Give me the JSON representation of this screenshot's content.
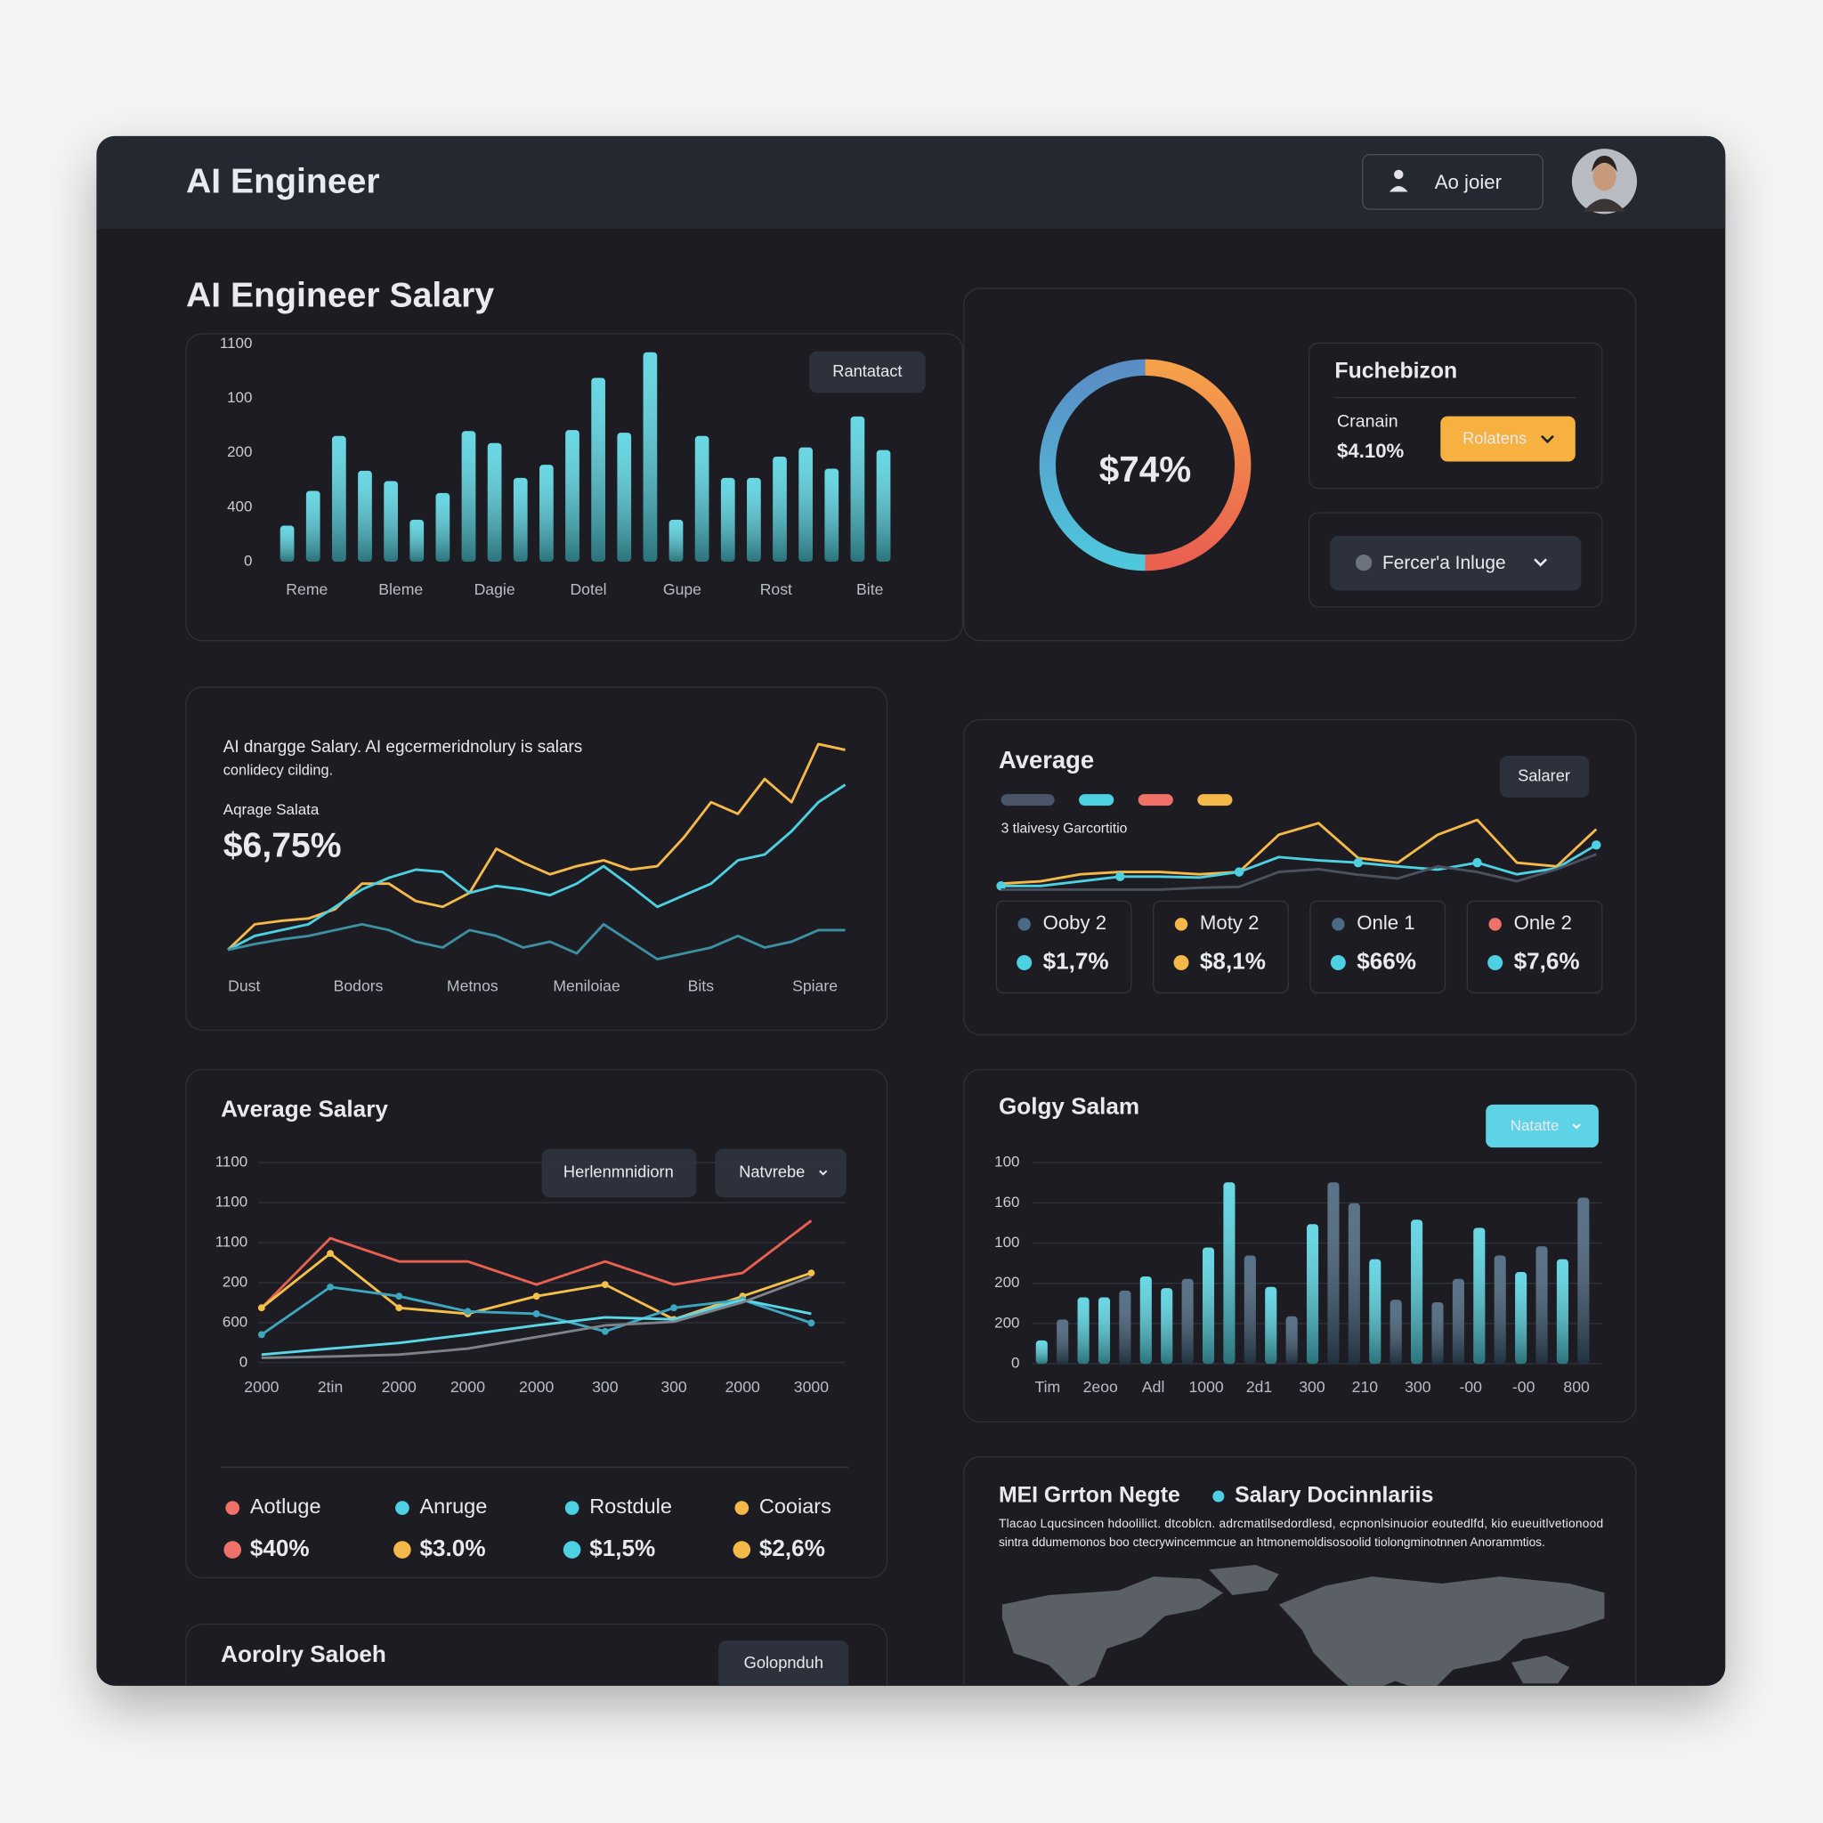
{
  "header": {
    "title": "AI Engineer",
    "button": "Ao joier"
  },
  "salary_bars": {
    "type": "bar",
    "title": "AI Engineer Salary",
    "tooltip": "Rantatact",
    "ylim": [
      0,
      400
    ],
    "yticks": [
      {
        "value": 400,
        "label": "1100"
      },
      {
        "value": 300,
        "label": "100"
      },
      200,
      {
        "value": 100,
        "label": "400"
      },
      0
    ],
    "values": [
      66,
      130,
      231,
      167,
      148,
      77,
      126,
      240,
      218,
      154,
      178,
      242,
      338,
      237,
      385,
      77,
      231,
      154,
      154,
      193,
      210,
      171,
      267,
      205
    ],
    "x_labels": [
      "Reme",
      "Bleme",
      "Dagie",
      "Dotel",
      "Gupe",
      "Rost",
      "Bite"
    ],
    "color": "#4fd1e0"
  },
  "donut": {
    "label": "$74%"
  },
  "fuche_card": {
    "title": "Fuchebizon",
    "label": "Cranain",
    "value": "$4.10%",
    "button": "Rolatens"
  },
  "filter": {
    "label": "Fercer'a Inluge"
  },
  "trend": {
    "type": "line",
    "text_line1": "AI dnargge Salary. AI egcermeridnolury is salars",
    "text_line2": "conlidecy cilding.",
    "metric_label": "Aqrage Salata",
    "metric_value": "$6,75%",
    "x_labels": [
      "Dust",
      "Bodors",
      "Metnos",
      "Meniloiae",
      "Bits",
      "Spiare"
    ],
    "ylim": [
      0,
      100
    ],
    "series": [
      {
        "color": "#f5b94a",
        "values": [
          6.5,
          17.5,
          19,
          20,
          24,
          35,
          35,
          27.5,
          25,
          31,
          50,
          44,
          39,
          42.5,
          45,
          41,
          42.5,
          55,
          70,
          65,
          80,
          70,
          95,
          92.5
        ]
      },
      {
        "color": "#4dd0e1",
        "values": [
          6.5,
          12.5,
          15,
          17.5,
          25,
          32.5,
          37.5,
          41,
          40,
          31,
          34,
          32.5,
          30,
          35,
          42.5,
          34,
          25,
          30,
          35,
          45,
          47.5,
          57.5,
          70,
          77.5
        ]
      },
      {
        "color": "#3e8fa0",
        "values": [
          6.5,
          9,
          11,
          12.5,
          15,
          17.5,
          15,
          10,
          7.5,
          15,
          12.5,
          7.5,
          10,
          5,
          17.5,
          10,
          2.5,
          5,
          7.5,
          12.5,
          7.5,
          10,
          15,
          15
        ]
      }
    ]
  },
  "average": {
    "type": "line",
    "title": "Average",
    "button": "Salarer",
    "subtitle": "3 tlaivesy Garcortitio",
    "legend_colors": [
      "#4a5568",
      "#4dd0e1",
      "#f07167",
      "#f5b94a"
    ],
    "ylim": [
      0,
      100
    ],
    "series": [
      {
        "color": "#f5b94a",
        "values": [
          12.5,
          15,
          22.5,
          25,
          25,
          22.5,
          25,
          65,
          77.5,
          40,
          35,
          65,
          81,
          35,
          31,
          71
        ]
      },
      {
        "color": "#4dd0e1",
        "values": [
          10,
          10,
          15,
          20,
          20,
          19,
          25,
          41,
          37.5,
          35,
          31,
          27.5,
          35,
          22.5,
          29,
          54
        ]
      },
      {
        "color": "#4a5260",
        "values": [
          6,
          6,
          6,
          6,
          6,
          8,
          9,
          25,
          28,
          22,
          18,
          31,
          25,
          15,
          28,
          44
        ]
      }
    ],
    "stats": [
      {
        "label": "Ooby 2",
        "value": "$1,7%",
        "label_color": "#4a6a85",
        "value_color": "#4dd0e1"
      },
      {
        "label": "Moty 2",
        "value": "$8,1%",
        "label_color": "#f5b94a",
        "value_color": "#f5b94a"
      },
      {
        "label": "Onle 1",
        "value": "$66%",
        "label_color": "#4a6a85",
        "value_color": "#4dd0e1"
      },
      {
        "label": "Onle 2",
        "value": "$7,6%",
        "label_color": "#f07167",
        "value_color": "#4dd0e1"
      }
    ]
  },
  "avg_salary": {
    "type": "line",
    "title": "Average Salary",
    "buttons": [
      "Herlenmnidiorn",
      "Natvrebe"
    ],
    "categories": [
      "2000",
      "2tin",
      "2000",
      "2000",
      "2000",
      "300",
      "300",
      "2000",
      "3000"
    ],
    "ylim": [
      0,
      500
    ],
    "yticks": [
      {
        "value": 500,
        "label": "1100"
      },
      {
        "value": 400,
        "label": "1100"
      },
      {
        "value": 300,
        "label": "1100"
      },
      200,
      {
        "value": 100,
        "label": "600"
      },
      0
    ],
    "series": [
      {
        "color": "#e8604f",
        "values": [
          137,
          311,
          253,
          253,
          195,
          253,
          195,
          224,
          355
        ]
      },
      {
        "color": "#f5c04a",
        "values": [
          137,
          273,
          137,
          122,
          166,
          195,
          108,
          166,
          224
        ]
      },
      {
        "color": "#3fa6c0",
        "values": [
          70,
          189,
          166,
          128,
          122,
          78,
          137,
          157,
          99
        ]
      },
      {
        "color": "#5ad6e6",
        "values": [
          20,
          35,
          49,
          70,
          93,
          113,
          108,
          157,
          122
        ]
      },
      {
        "color": "#7d828b",
        "values": [
          12,
          15,
          20,
          35,
          64,
          93,
          102,
          151,
          215
        ]
      }
    ],
    "legend": [
      {
        "name": "Aotluge",
        "value": "$40%",
        "color": "#f07167",
        "value_color": "#f07167"
      },
      {
        "name": "Anruge",
        "value": "$3.0%",
        "color": "#4dd0e1",
        "value_color": "#f5b94a"
      },
      {
        "name": "Rostdule",
        "value": "$1,5%",
        "color": "#4dd0e1",
        "value_color": "#4dd0e1"
      },
      {
        "name": "Cooiars",
        "value": "$2,6%",
        "color": "#f5b94a",
        "value_color": "#f5b94a"
      }
    ]
  },
  "golgy": {
    "type": "bar",
    "title": "Golgy Salam",
    "button": "Natatte",
    "ylim": [
      0,
      500
    ],
    "yticks": [
      {
        "value": 500,
        "label": "100"
      },
      {
        "value": 400,
        "label": "160"
      },
      {
        "value": 300,
        "label": "100"
      },
      200,
      {
        "value": 100,
        "label": "200"
      },
      0
    ],
    "values": [
      58,
      110,
      165,
      165,
      182,
      217,
      188,
      211,
      289,
      451,
      269,
      191,
      118,
      347,
      451,
      399,
      260,
      159,
      358,
      153,
      211,
      338,
      269,
      228,
      292,
      260,
      413
    ],
    "colors": [
      "#4fd1e0",
      "#3d5a73",
      "#4fd1e0",
      "#4fd1e0",
      "#3d5a73",
      "#4fd1e0",
      "#4fd1e0",
      "#3d5a73",
      "#4fd1e0",
      "#4fd1e0",
      "#3d5a73",
      "#4fd1e0",
      "#3d5a73",
      "#4fd1e0",
      "#3d5a73",
      "#3d5a73",
      "#4fd1e0",
      "#3d5a73",
      "#4fd1e0",
      "#3d5a73",
      "#3d5a73",
      "#4fd1e0",
      "#3d5a73",
      "#4fd1e0",
      "#3d5a73",
      "#4fd1e0",
      "#3d5a73"
    ],
    "x_labels": [
      "Tim",
      "2eoo",
      "Adl",
      "1000",
      "2d1",
      "300",
      "210",
      "300",
      "-00",
      "-00",
      "800"
    ]
  },
  "map_panel": {
    "title": "MEI Grrton Negte",
    "subtitle": "Salary Docinnlariis",
    "text_line1": "Tlacao Lqucsincen hdoolilict. dtcoblcn. adrcmatilsedordlesd, ecpnonlsinuoior eoutedlfd, kio eueuitlvetionood",
    "text_line2": "sintra ddumemonos boo ctecrywincemmcue an htmonemoldisosoolid tiolongminotnnen Anorammtios."
  },
  "bottom_panel": {
    "title": "Aorolry Saloeh",
    "button": "Golopnduh"
  }
}
